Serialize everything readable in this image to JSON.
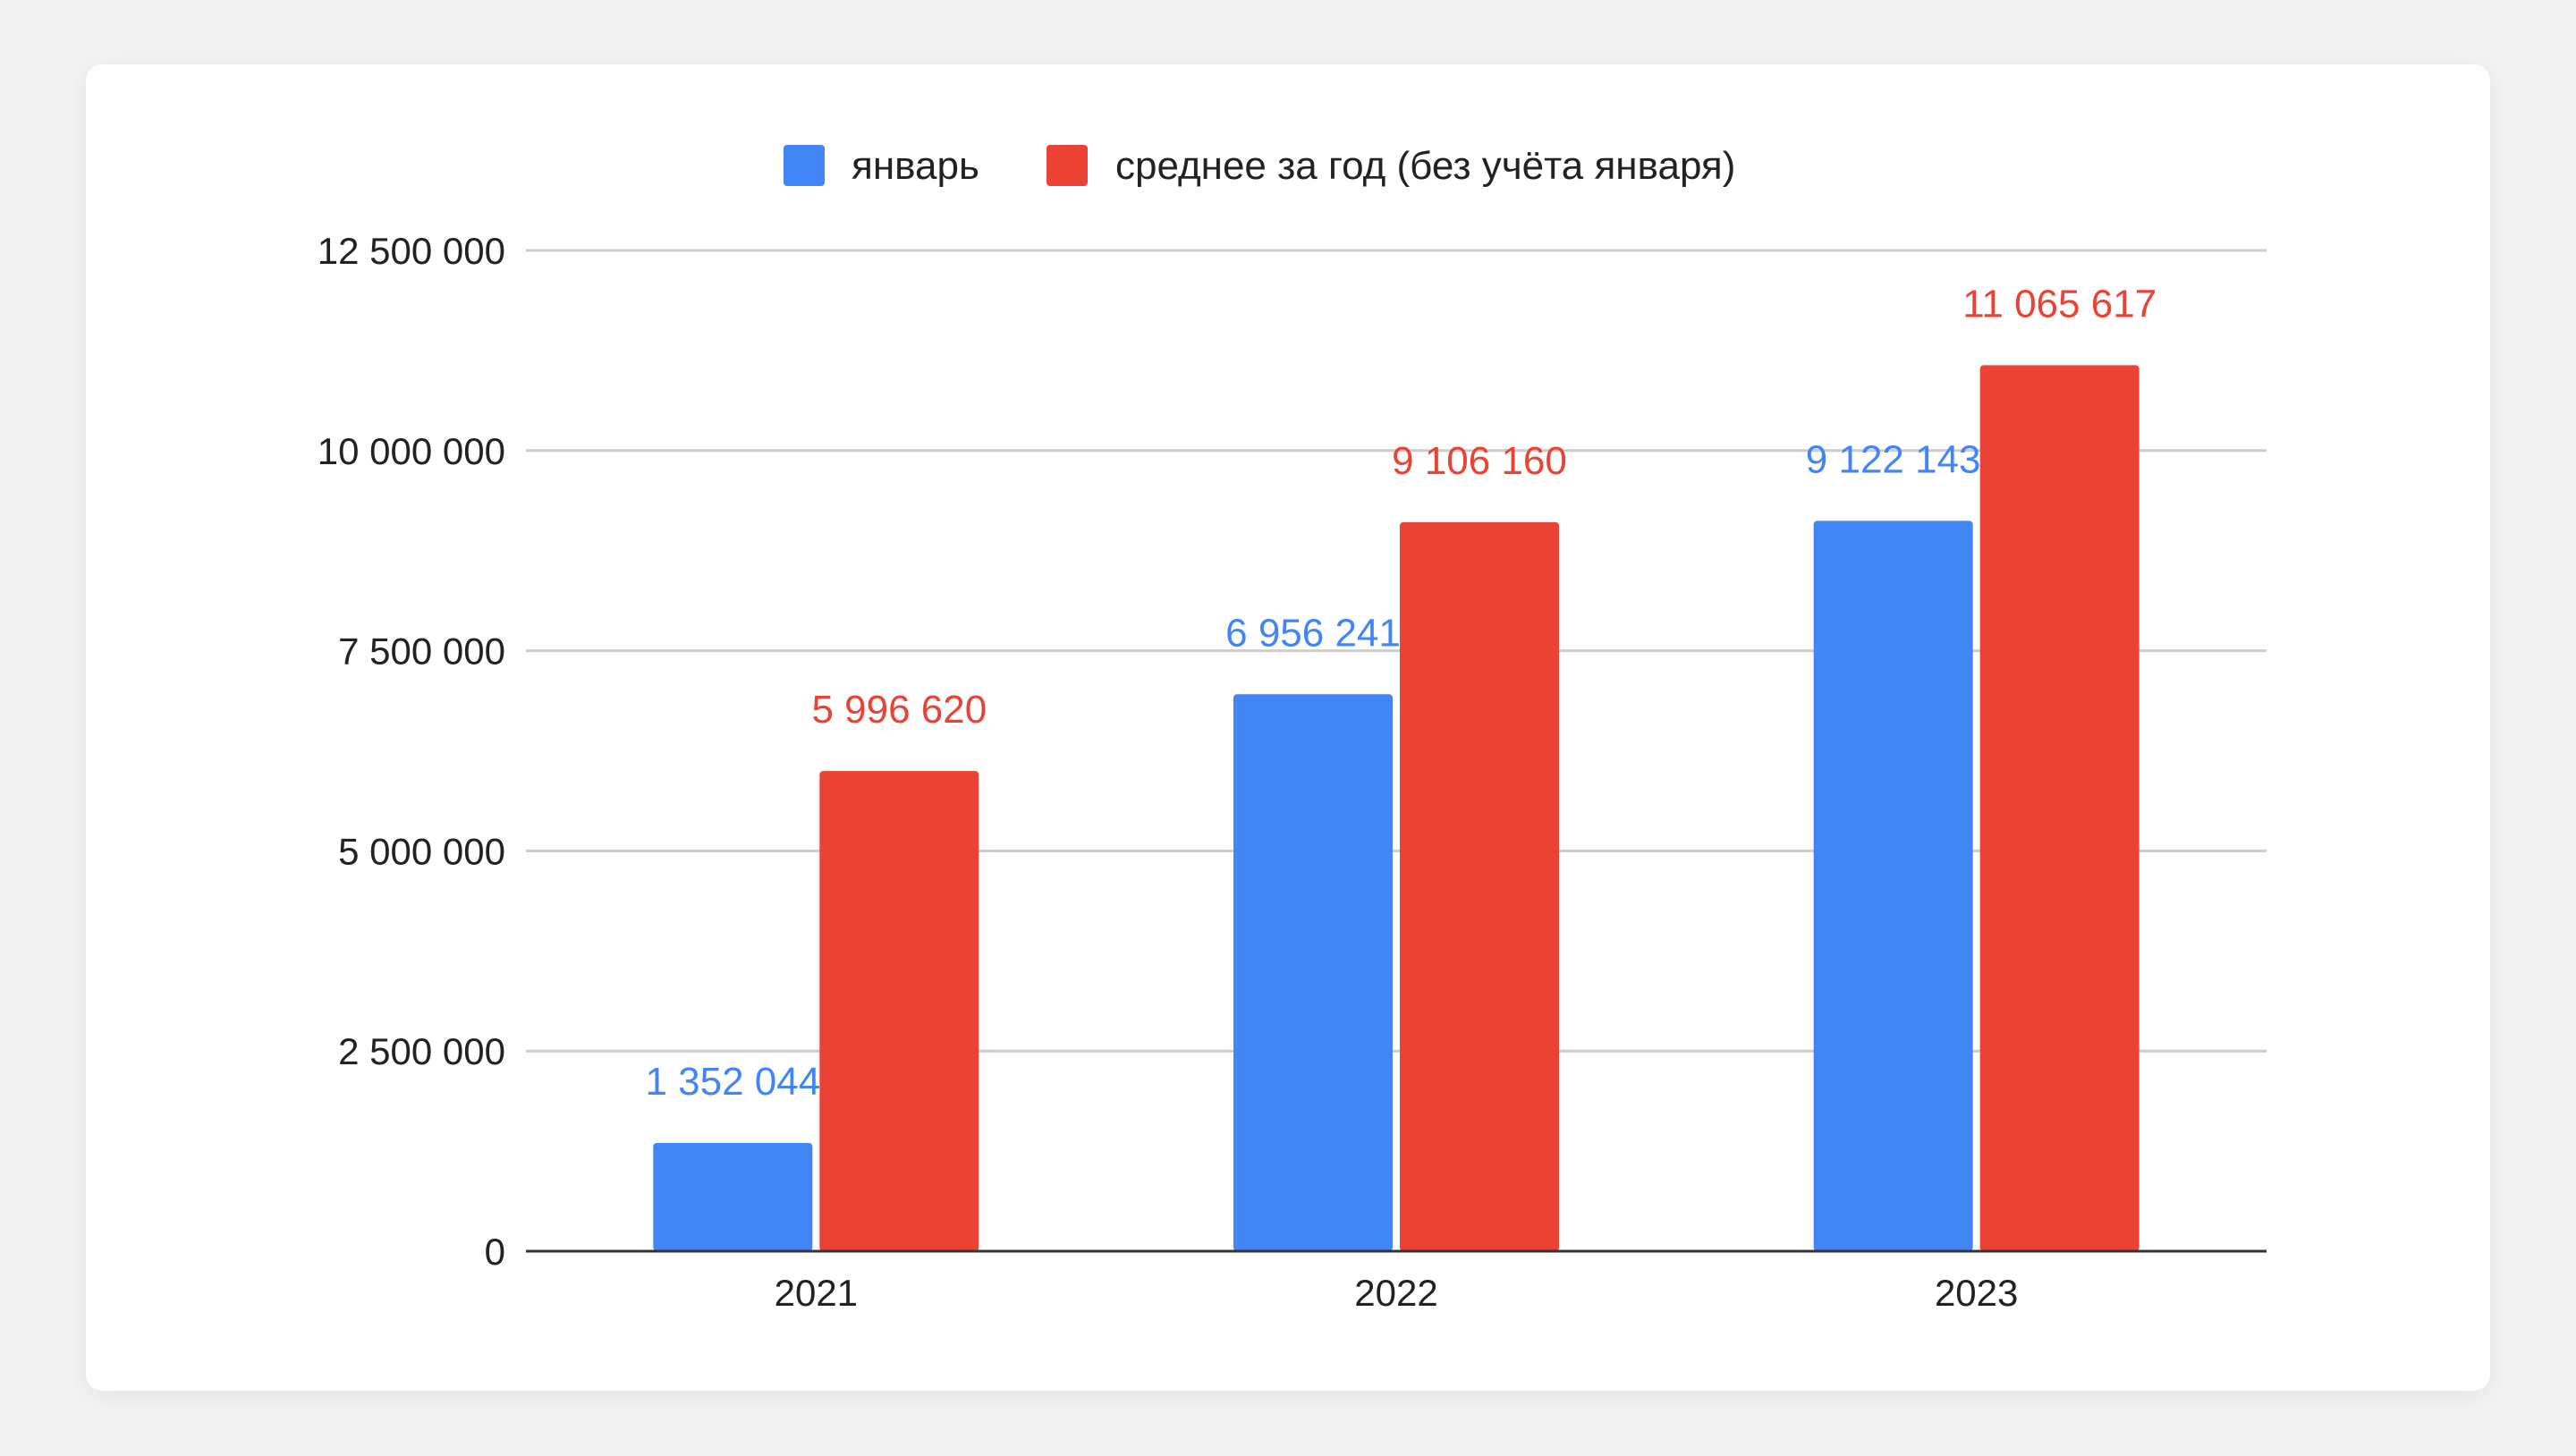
{
  "chart_data": {
    "type": "bar",
    "title": "",
    "xlabel": "",
    "ylabel": "",
    "categories": [
      "2021",
      "2022",
      "2023"
    ],
    "series": [
      {
        "name": "январь",
        "color": "#4285f4",
        "values": [
          1352044,
          6956241,
          9122143
        ],
        "labels": [
          "1 352 044",
          "6 956 241",
          "9 122 143"
        ]
      },
      {
        "name": "среднее за год (без учёта января)",
        "color": "#ea4335",
        "values": [
          5996620,
          9106160,
          11065617
        ],
        "labels": [
          "5 996 620",
          "9 106 160",
          "11 065 617"
        ]
      }
    ],
    "ylim": [
      0,
      12500000
    ],
    "yticks": [
      0,
      2500000,
      5000000,
      7500000,
      10000000,
      12500000
    ],
    "ytick_labels": [
      "0",
      "2 500 000",
      "5 000 000",
      "7 500 000",
      "10 000 000",
      "12 500 000"
    ],
    "grid": true,
    "legend": "top-center"
  }
}
